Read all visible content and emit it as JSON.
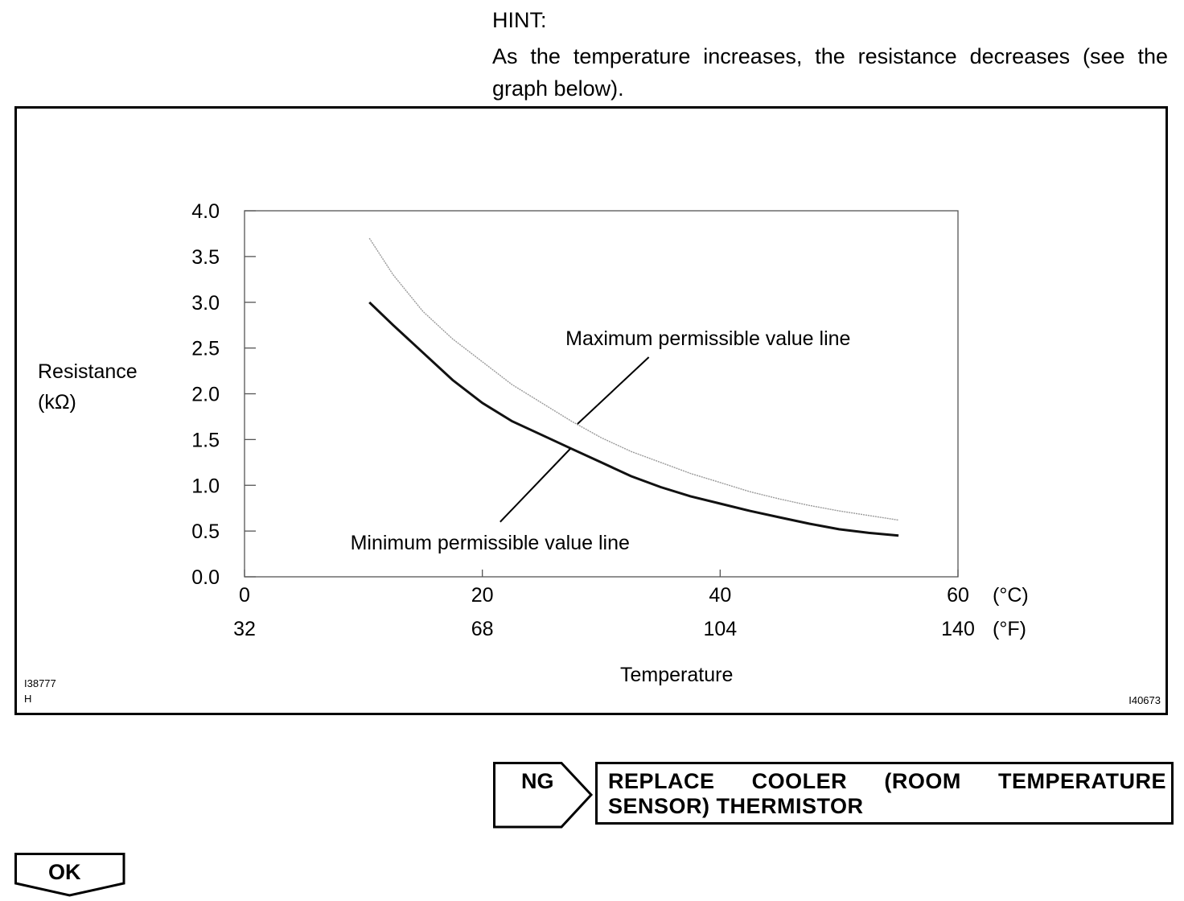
{
  "hint": {
    "title": "HINT:",
    "text": "As the temperature increases, the resistance decreases (see the graph below)."
  },
  "figure": {
    "id_left_line1": "I38777",
    "id_left_line2": "H",
    "id_right": "I40673"
  },
  "chart_data": {
    "type": "line",
    "xlabel": "Temperature",
    "ylabel_line1": "Resistance",
    "ylabel_line2": "(kΩ)",
    "xlim": [
      0,
      60
    ],
    "ylim": [
      0.0,
      4.0
    ],
    "grid": false,
    "y_ticks": [
      "0.0",
      "0.5",
      "1.0",
      "1.5",
      "2.0",
      "2.5",
      "3.0",
      "3.5",
      "4.0"
    ],
    "x_ticks_c": [
      {
        "value": 0,
        "label": "0"
      },
      {
        "value": 20,
        "label": "20"
      },
      {
        "value": 40,
        "label": "40"
      },
      {
        "value": 60,
        "label": "60"
      }
    ],
    "x_ticks_f": [
      {
        "value": 0,
        "label": "32"
      },
      {
        "value": 20,
        "label": "68"
      },
      {
        "value": 40,
        "label": "104"
      },
      {
        "value": 60,
        "label": "140"
      }
    ],
    "unit_c": "(°C)",
    "unit_f": "(°F)",
    "series": [
      {
        "name": "Maximum permissible value line",
        "style": "light",
        "x": [
          10.5,
          12.5,
          15,
          17.5,
          20,
          22.5,
          25,
          27.5,
          30,
          32.5,
          35,
          37.5,
          40,
          42.5,
          45,
          47.5,
          50,
          52.5,
          55
        ],
        "y": [
          3.7,
          3.3,
          2.9,
          2.6,
          2.35,
          2.1,
          1.9,
          1.7,
          1.52,
          1.37,
          1.25,
          1.13,
          1.03,
          0.93,
          0.85,
          0.78,
          0.72,
          0.67,
          0.62
        ]
      },
      {
        "name": "Minimum permissible value line",
        "style": "dark",
        "x": [
          10.5,
          12.5,
          15,
          17.5,
          20,
          22.5,
          25,
          27.5,
          30,
          32.5,
          35,
          37.5,
          40,
          42.5,
          45,
          47.5,
          50,
          52.5,
          55
        ],
        "y": [
          3.0,
          2.75,
          2.45,
          2.15,
          1.9,
          1.7,
          1.55,
          1.4,
          1.25,
          1.1,
          0.98,
          0.88,
          0.8,
          0.72,
          0.65,
          0.58,
          0.52,
          0.48,
          0.45
        ]
      }
    ],
    "annotations": [
      {
        "text": "Maximum permissible value line",
        "label_x": 27,
        "label_y": 2.53,
        "leader_from": [
          34,
          2.4
        ],
        "leader_to": [
          28,
          1.67
        ]
      },
      {
        "text": "Minimum permissible value line",
        "label_x": 8.9,
        "label_y": 0.3,
        "leader_from": [
          21.5,
          0.6
        ],
        "leader_to": [
          27.4,
          1.4
        ]
      }
    ]
  },
  "result": {
    "ng_label": "NG",
    "ng_action": "REPLACE COOLER (ROOM TEMPERATURE SENSOR) THERMISTOR",
    "ok_label": "OK"
  }
}
